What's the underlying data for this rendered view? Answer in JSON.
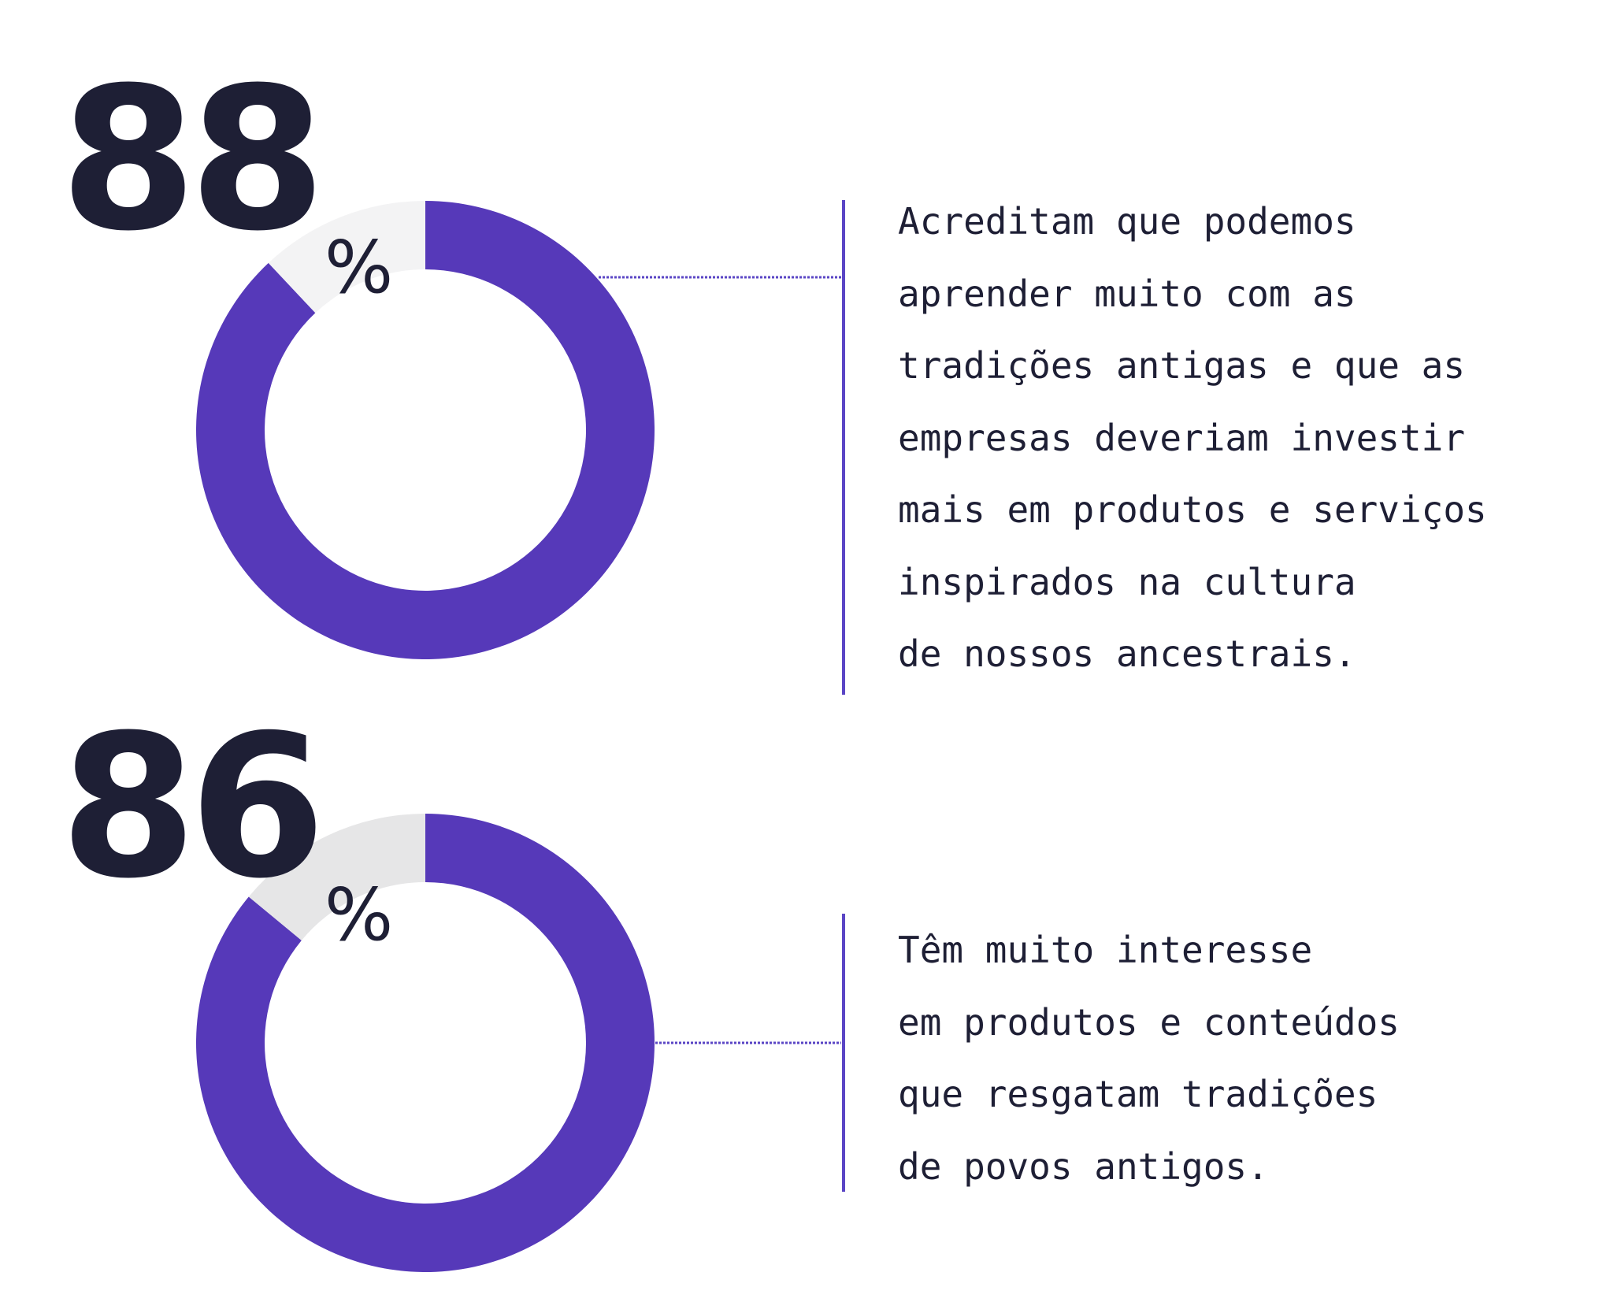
{
  "colors": {
    "accent": "#5639b9",
    "track_1": "#f3f3f4",
    "track_2": "#e6e6e7",
    "text": "#1e1f35",
    "divider": "#5a45c5"
  },
  "stats": [
    {
      "value": "88",
      "unit": "%",
      "lines": [
        "Acreditam que podemos",
        "aprender muito com as",
        "tradições antigas e que as",
        "empresas deveriam investir",
        "mais em produtos e serviços",
        "inspirados na cultura",
        "de nossos ancestrais."
      ]
    },
    {
      "value": "86",
      "unit": "%",
      "lines": [
        "Têm muito interesse",
        "em produtos e conteúdos",
        "que resgatam tradições",
        "de povos antigos."
      ]
    }
  ],
  "chart_data": [
    {
      "type": "pie",
      "variant": "donut",
      "values": [
        88,
        12
      ],
      "labels": [
        "88%",
        ""
      ]
    },
    {
      "type": "pie",
      "variant": "donut",
      "values": [
        86,
        14
      ],
      "labels": [
        "86%",
        ""
      ]
    }
  ]
}
